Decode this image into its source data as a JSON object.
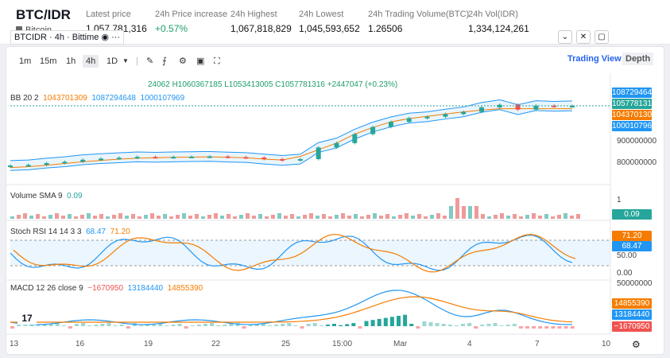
{
  "header": {
    "pair": "BTC/IDR",
    "coin": "Bitcoin",
    "stats": [
      {
        "label": "Latest price",
        "value": "1,057,781,316"
      },
      {
        "label": "24h Price increase",
        "value": "+0.57%"
      },
      {
        "label": "24h Highest",
        "value": "1,067,818,829"
      },
      {
        "label": "24h Lowest",
        "value": "1,045,593,652"
      },
      {
        "label": "24h Trading Volume(BTC)",
        "value": "1.26506"
      },
      {
        "label": "24h Vol(IDR)",
        "value": "1,334,124,261"
      }
    ]
  },
  "toolbar": {
    "timeframes": [
      "1m",
      "15m",
      "1h",
      "4h",
      "1D"
    ],
    "selected": "4h",
    "views": [
      "Trading View",
      "Depth"
    ]
  },
  "chart": {
    "symbol": "BTCIDR · 4h · Bittime",
    "ohlc": "24062 H1060367185 L1053413005 C1057781316 +2447047 (+0.23%)",
    "bb": {
      "label": "BB 20 2",
      "upper": "1043701309",
      "mid": "1087294648",
      "lower": "1000107969"
    },
    "price_tags": [
      "1087294648",
      "1057781316",
      "1043701309",
      "1000107969"
    ],
    "price_ticks": [
      "900000000",
      "800000000"
    ],
    "volume": {
      "label": "Volume SMA 9",
      "value": "0.09",
      "tick": "1",
      "tag": "0.09"
    },
    "stoch": {
      "label": "Stoch RSI 14 14 3 3",
      "k": "68.47",
      "d": "71.20",
      "ticks": [
        "50.00",
        "0.00"
      ],
      "tags": [
        "71.20",
        "68.47"
      ]
    },
    "macd": {
      "label": "MACD 12 26 close 9",
      "hist": "−1670950",
      "macd": "13184440",
      "signal": "14855390",
      "ticks": [
        "50000000"
      ],
      "tags": [
        "14855390",
        "13184440",
        "−1670950"
      ]
    },
    "xticks": [
      "13",
      "16",
      "19",
      "22",
      "25",
      "15:00",
      "Mar",
      "4",
      "7",
      "10"
    ],
    "logo": "17"
  },
  "colors": {
    "up": "#26a69a",
    "down": "#ef5350",
    "orange": "#f57c00",
    "blue": "#2196f3",
    "accent": "#2563eb"
  },
  "chart_data": {
    "type": "line",
    "series": [
      {
        "name": "BTCIDR",
        "values": [
          789,
          792,
          800,
          806,
          815,
          820,
          824,
          828,
          826,
          828,
          829,
          830,
          827,
          825,
          818,
          812,
          818,
          870,
          890,
          930,
          962,
          985,
          1002,
          1008,
          1020,
          1030,
          1050,
          1062,
          1040,
          1058,
          1055,
          1057
        ]
      },
      {
        "name": "BB 20 2",
        "values": [
          780,
          784,
          790,
          798,
          806,
          812,
          818,
          822,
          824,
          826,
          827,
          828,
          826,
          824,
          818,
          814,
          830,
          860,
          890,
          930,
          960,
          985,
          1000,
          1010,
          1020,
          1030,
          1038,
          1044,
          1044,
          1044,
          1044,
          1044
        ]
      }
    ]
  }
}
